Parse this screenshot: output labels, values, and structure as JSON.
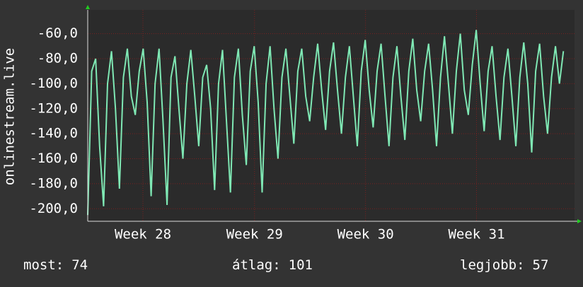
{
  "chart_data": {
    "type": "line",
    "ylabel": "onlinestream.live",
    "x": [
      0,
      0.25,
      0.5,
      0.75,
      1,
      1.25,
      1.5,
      1.75,
      2,
      2.25,
      2.5,
      2.75,
      3,
      3.25,
      3.5,
      3.75,
      4,
      4.25,
      4.5,
      4.75,
      5,
      5.25,
      5.5,
      5.75,
      6,
      6.25,
      6.5,
      6.75,
      7,
      7.25,
      7.5,
      7.75,
      8,
      8.25,
      8.5,
      8.75,
      9,
      9.25,
      9.5,
      9.75,
      10,
      10.25,
      10.5,
      10.75,
      11,
      11.25,
      11.5,
      11.75,
      12,
      12.25,
      12.5,
      12.75,
      13,
      13.25,
      13.5,
      13.75,
      14,
      14.25,
      14.5,
      14.75,
      15,
      15.25,
      15.5,
      15.75,
      16,
      16.25,
      16.5,
      16.75,
      17,
      17.25,
      17.5,
      17.75,
      18,
      18.25,
      18.5,
      18.75,
      19,
      19.25,
      19.5,
      19.75,
      20,
      20.25,
      20.5,
      20.75,
      21,
      21.25,
      21.5,
      21.75,
      22,
      22.25,
      22.5,
      22.75,
      23,
      23.25,
      23.5,
      23.75,
      24,
      24.25,
      24.5,
      24.75,
      25,
      25.25,
      25.5,
      25.75,
      26,
      26.25,
      26.5,
      26.75,
      27,
      27.25,
      27.5,
      27.75,
      28,
      28.25,
      28.5,
      28.75,
      29,
      29.25,
      29.5,
      29.75,
      30
    ],
    "series": [
      {
        "name": "onlinestream.live",
        "color": "#7fe8b4",
        "values": [
          -205,
          -90,
          -80,
          -150,
          -198,
          -100,
          -74,
          -120,
          -184,
          -95,
          -72,
          -110,
          -125,
          -90,
          -72,
          -115,
          -190,
          -100,
          -72,
          -130,
          -197,
          -95,
          -78,
          -120,
          -160,
          -100,
          -73,
          -110,
          -150,
          -95,
          -85,
          -120,
          -185,
          -100,
          -73,
          -130,
          -187,
          -95,
          -72,
          -125,
          -165,
          -90,
          -70,
          -115,
          -187,
          -100,
          -70,
          -120,
          -160,
          -95,
          -72,
          -110,
          -148,
          -90,
          -72,
          -110,
          -130,
          -95,
          -68,
          -105,
          -137,
          -90,
          -67,
          -105,
          -140,
          -95,
          -70,
          -110,
          -150,
          -90,
          -65,
          -105,
          -135,
          -90,
          -68,
          -110,
          -150,
          -95,
          -70,
          -110,
          -145,
          -90,
          -64,
          -105,
          -130,
          -90,
          -68,
          -105,
          -150,
          -95,
          -62,
          -100,
          -140,
          -90,
          -60,
          -105,
          -125,
          -85,
          -57,
          -100,
          -138,
          -90,
          -70,
          -110,
          -145,
          -95,
          -72,
          -110,
          -150,
          -95,
          -67,
          -100,
          -155,
          -90,
          -68,
          -110,
          -140,
          -95,
          -70,
          -100,
          -74
        ]
      }
    ],
    "xlim": [
      0,
      30.7
    ],
    "xticks": [
      {
        "value": 3.48,
        "label": "Week 28"
      },
      {
        "value": 10.52,
        "label": "Week 29"
      },
      {
        "value": 17.52,
        "label": "Week 30"
      },
      {
        "value": 24.52,
        "label": "Week 31"
      }
    ],
    "ylim": [
      -210,
      -41
    ],
    "yticks": [
      {
        "value": -60,
        "label": "-60,0"
      },
      {
        "value": -80,
        "label": "-80,0"
      },
      {
        "value": -100,
        "label": "-100,0"
      },
      {
        "value": -120,
        "label": "-120,0"
      },
      {
        "value": -140,
        "label": "-140,0"
      },
      {
        "value": -160,
        "label": "-160,0"
      },
      {
        "value": -180,
        "label": "-180,0"
      },
      {
        "value": -200,
        "label": "-200,0"
      }
    ],
    "grid": true,
    "footer": [
      {
        "label": "most:",
        "value": 74
      },
      {
        "label": "átlag:",
        "value": 101
      },
      {
        "label": "legjobb:",
        "value": 57
      }
    ]
  }
}
